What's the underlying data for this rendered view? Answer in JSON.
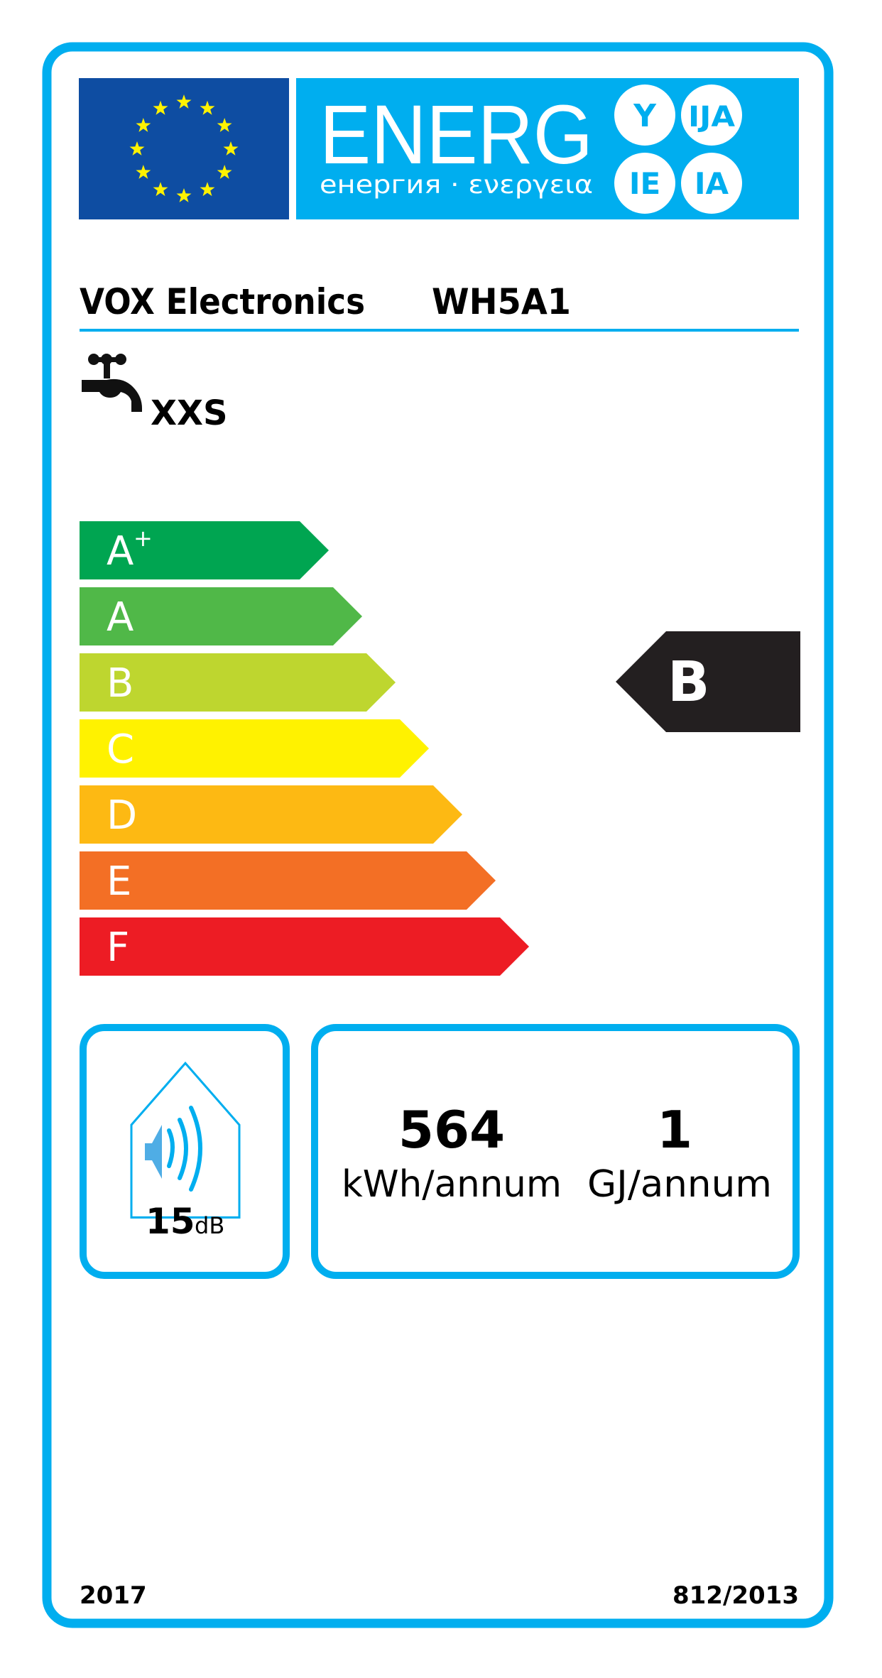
{
  "header": {
    "energy_word": "ENERG",
    "subtitle": "енергия · ενεργεια",
    "suffixes": [
      "Y",
      "IJA",
      "IE",
      "IA"
    ],
    "flag_icon": "eu-flag-icon"
  },
  "supplier": {
    "name": "VOX Electronics",
    "model": "WH5A1"
  },
  "load_profile": {
    "icon": "water-tap-icon",
    "value": "XXS"
  },
  "scale": {
    "classes": [
      {
        "label": "A",
        "sup": "+",
        "color": "#00A551"
      },
      {
        "label": "A",
        "sup": "",
        "color": "#50B848"
      },
      {
        "label": "B",
        "sup": "",
        "color": "#BED62F"
      },
      {
        "label": "C",
        "sup": "",
        "color": "#FFF200"
      },
      {
        "label": "D",
        "sup": "",
        "color": "#FDB913"
      },
      {
        "label": "E",
        "sup": "",
        "color": "#F36F25"
      },
      {
        "label": "F",
        "sup": "",
        "color": "#ED1C24"
      }
    ],
    "rating": "B",
    "rating_index": 2,
    "rating_color": "#231F20"
  },
  "noise": {
    "icon": "speaker-house-icon",
    "value": "15",
    "unit": "dB"
  },
  "consumption": {
    "electricity_value": "564",
    "electricity_unit": "kWh/annum",
    "fuel_value": "1",
    "fuel_unit": "GJ/annum"
  },
  "footer": {
    "year": "2017",
    "regulation": "812/2013"
  },
  "colors": {
    "border": "#00AEEF",
    "flag_blue": "#0E4DA2",
    "star_yellow": "#FFF200",
    "banner_blue": "#00AEEF"
  }
}
